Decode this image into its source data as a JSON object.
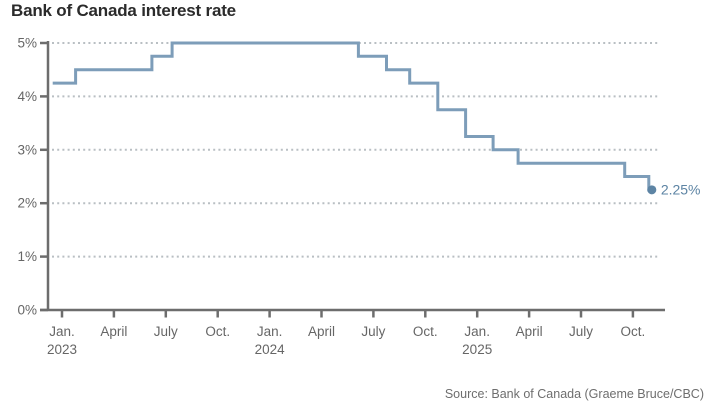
{
  "chart_data": {
    "type": "line",
    "step": true,
    "title": "Bank of Canada interest rate",
    "source": "Source: Bank of Canada (Graeme Bruce/CBC)",
    "unit": "%",
    "xlabel": "",
    "ylabel": "",
    "ylim": [
      0,
      5
    ],
    "grid": "horizontal-dotted",
    "legend_position": "none",
    "y_ticks": [
      {
        "value": 5,
        "label": "5%"
      },
      {
        "value": 4,
        "label": "4%"
      },
      {
        "value": 3,
        "label": "3%"
      },
      {
        "value": 2,
        "label": "2%"
      },
      {
        "value": 1,
        "label": "1%"
      },
      {
        "value": 0,
        "label": "0%"
      }
    ],
    "x_ticks": [
      {
        "month_index": 0,
        "label": "Jan.",
        "year": "2023"
      },
      {
        "month_index": 3,
        "label": "April"
      },
      {
        "month_index": 6,
        "label": "July"
      },
      {
        "month_index": 9,
        "label": "Oct."
      },
      {
        "month_index": 12,
        "label": "Jan.",
        "year": "2024"
      },
      {
        "month_index": 15,
        "label": "April"
      },
      {
        "month_index": 18,
        "label": "July"
      },
      {
        "month_index": 21,
        "label": "Oct."
      },
      {
        "month_index": 24,
        "label": "Jan.",
        "year": "2025"
      },
      {
        "month_index": 27,
        "label": "April"
      },
      {
        "month_index": 30,
        "label": "July"
      },
      {
        "month_index": 33,
        "label": "Oct."
      }
    ],
    "series": [
      {
        "name": "Bank of Canada interest rate",
        "points": [
          {
            "date": "2022-12-15",
            "rate": 4.25
          },
          {
            "date": "2023-01-25",
            "rate": 4.5
          },
          {
            "date": "2023-06-07",
            "rate": 4.75
          },
          {
            "date": "2023-07-12",
            "rate": 5.0
          },
          {
            "date": "2024-06-05",
            "rate": 4.75
          },
          {
            "date": "2024-07-24",
            "rate": 4.5
          },
          {
            "date": "2024-09-04",
            "rate": 4.25
          },
          {
            "date": "2024-10-23",
            "rate": 3.75
          },
          {
            "date": "2024-12-11",
            "rate": 3.25
          },
          {
            "date": "2025-01-29",
            "rate": 3.0
          },
          {
            "date": "2025-03-12",
            "rate": 2.75
          },
          {
            "date": "2025-09-17",
            "rate": 2.5
          },
          {
            "date": "2025-10-29",
            "rate": 2.25
          }
        ]
      }
    ],
    "end_annotation": {
      "label": "2.25%",
      "value": 2.25,
      "date": "2025-10-29"
    },
    "colors": {
      "line": "#7d9db9",
      "end_dot": "#5d84a4",
      "end_label": "#5d84a4",
      "axis": "#6d6d6d",
      "tick_label": "#666666",
      "gridline": "#b9bfc3",
      "title": "#2b2b2b",
      "source": "#6e6e6e",
      "background": "#ffffff"
    }
  }
}
